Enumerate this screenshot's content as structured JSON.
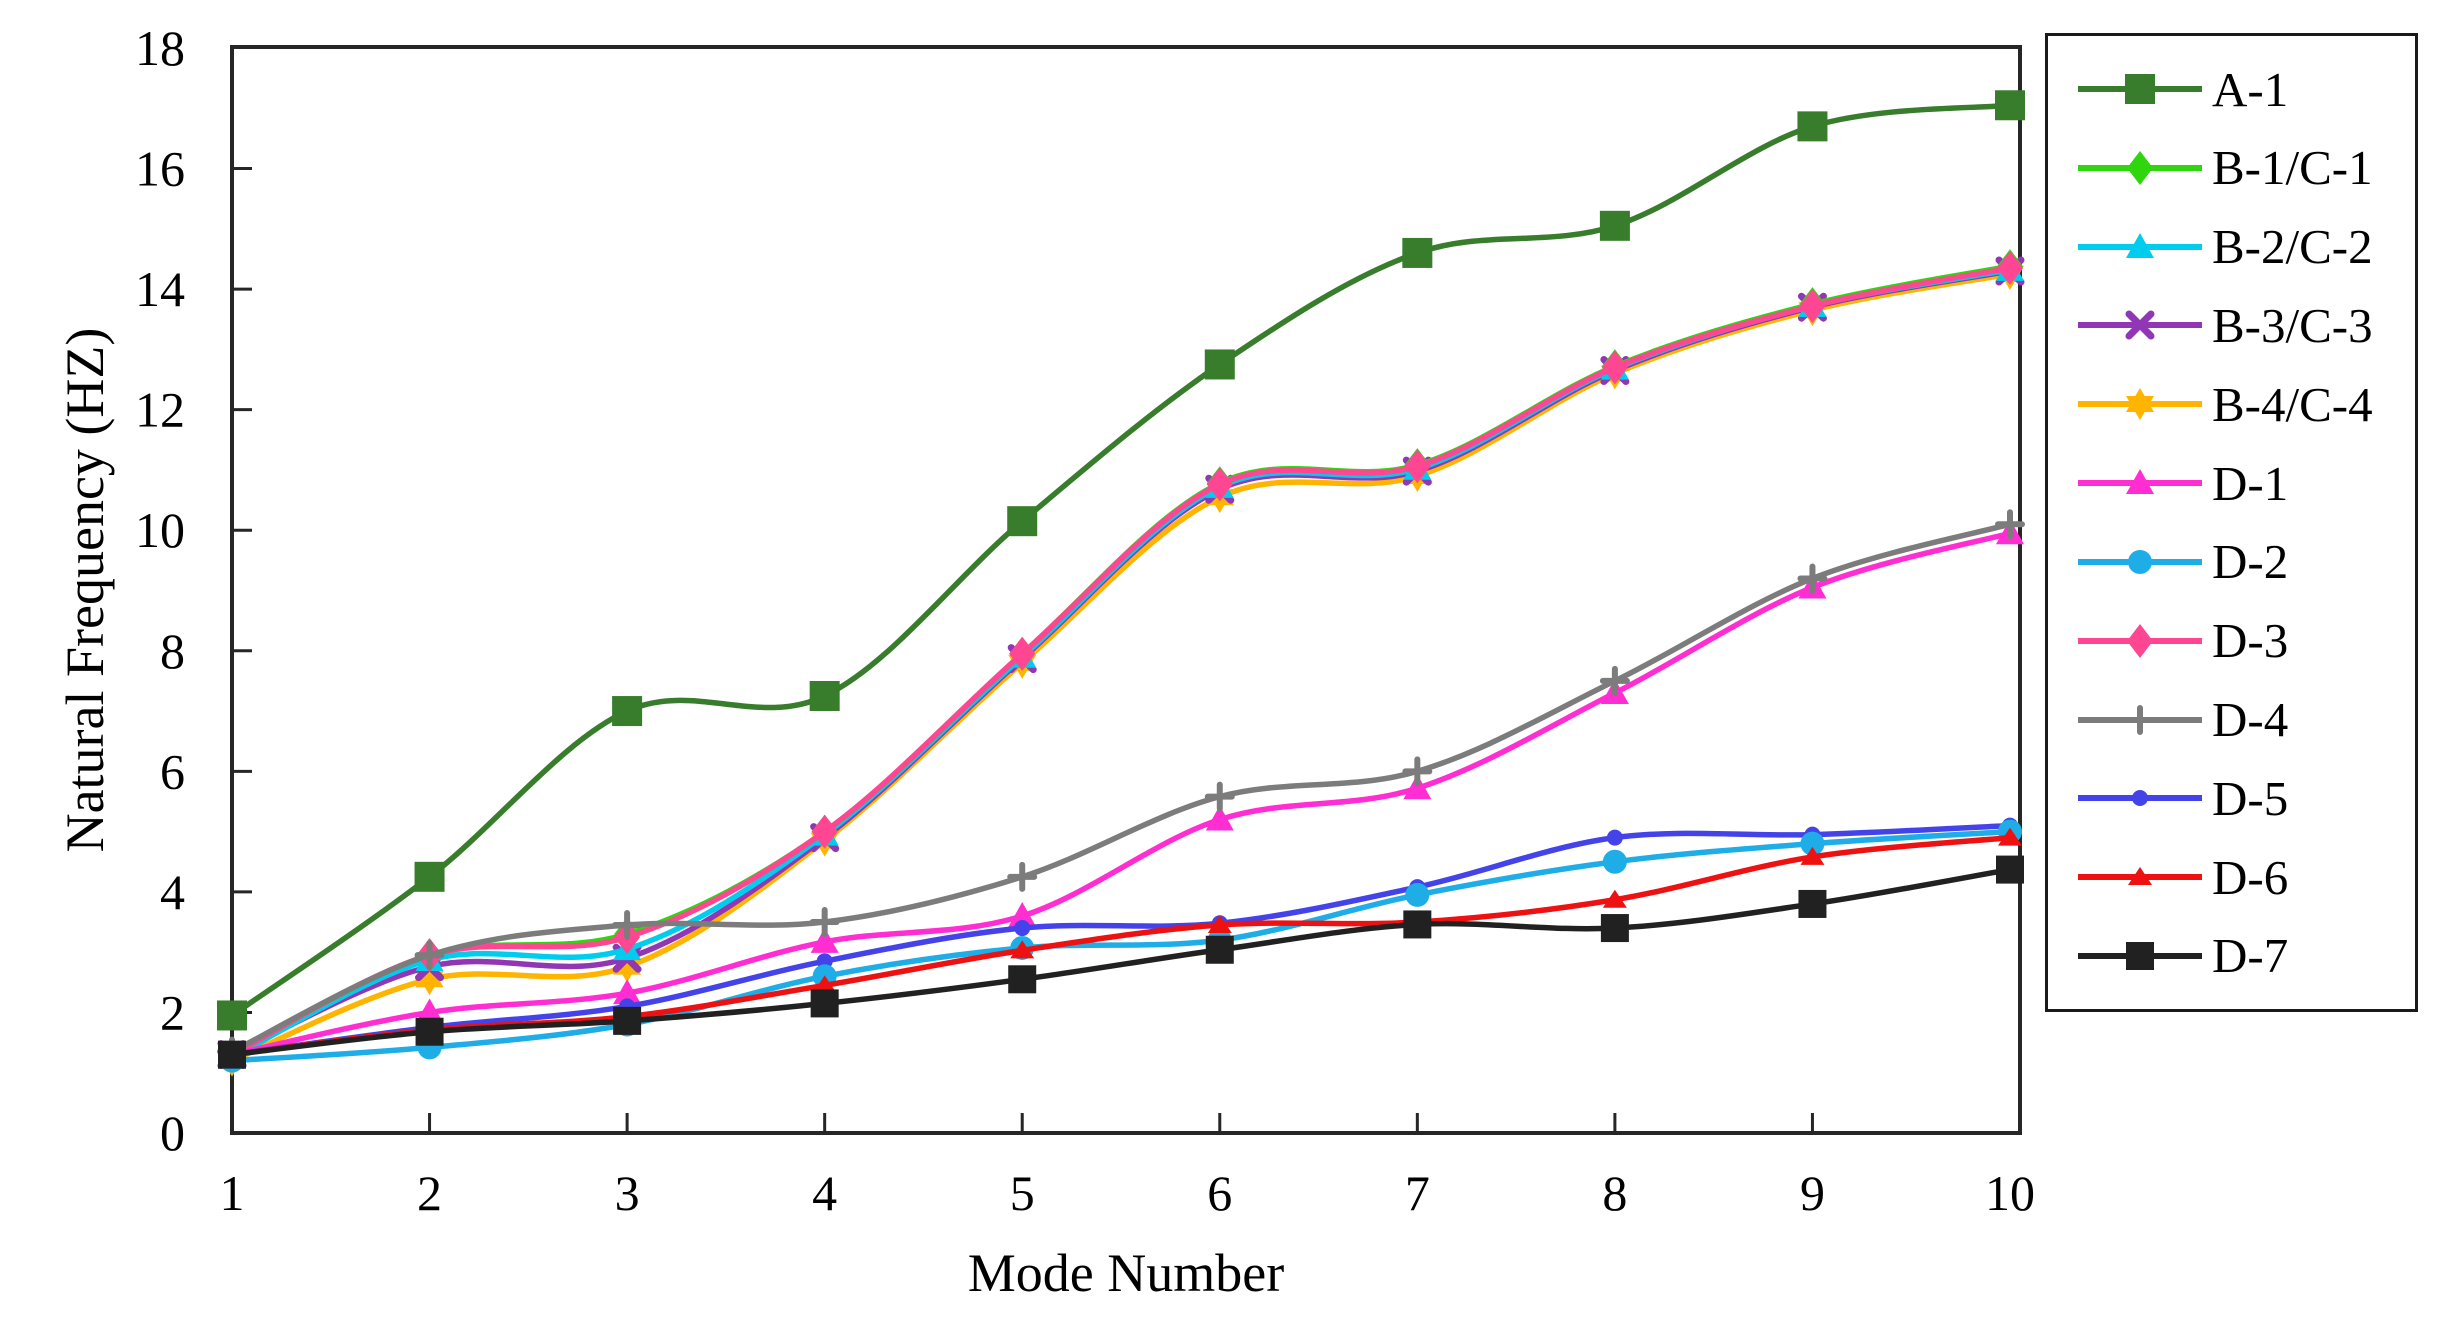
{
  "figure": {
    "xlabel": "Mode Number",
    "ylabel": "Natural Frequency (HZ)"
  },
  "chart_data": {
    "type": "line",
    "title": "",
    "xlabel": "Mode Number",
    "ylabel": "Natural Frequency (HZ)",
    "x": [
      1,
      2,
      3,
      4,
      5,
      6,
      7,
      8,
      9,
      10
    ],
    "x_ticks": [
      1,
      2,
      3,
      4,
      5,
      6,
      7,
      8,
      9,
      10
    ],
    "y_ticks": [
      0,
      2,
      4,
      6,
      8,
      10,
      12,
      14,
      16,
      18
    ],
    "xlim": [
      1,
      10
    ],
    "ylim": [
      0,
      18
    ],
    "grid": false,
    "legend_position": "right-outside",
    "series": [
      {
        "name": "A-1",
        "color": "#377d2b",
        "marker": "square",
        "values": [
          1.95,
          4.25,
          7.0,
          7.25,
          10.15,
          12.75,
          14.6,
          15.05,
          16.7,
          17.05
        ]
      },
      {
        "name": "B-1/C-1",
        "color": "#2fd60e",
        "marker": "diamond",
        "values": [
          1.3,
          2.95,
          3.3,
          5.0,
          7.95,
          10.78,
          11.08,
          12.72,
          13.75,
          14.38
        ]
      },
      {
        "name": "B-2/C-2",
        "color": "#00cdee",
        "marker": "triangle",
        "values": [
          1.25,
          2.87,
          3.05,
          4.95,
          7.9,
          10.72,
          11.02,
          12.68,
          13.72,
          14.32
        ]
      },
      {
        "name": "B-3/C-3",
        "color": "#9136b4",
        "marker": "x",
        "values": [
          1.3,
          2.76,
          2.9,
          4.9,
          7.87,
          10.68,
          10.98,
          12.65,
          13.7,
          14.3
        ]
      },
      {
        "name": "B-4/C-4",
        "color": "#ffb400",
        "marker": "star",
        "values": [
          1.2,
          2.55,
          2.76,
          4.85,
          7.8,
          10.55,
          10.9,
          12.6,
          13.65,
          14.25
        ]
      },
      {
        "name": "D-1",
        "color": "#ff2dd2",
        "marker": "triangle",
        "values": [
          1.3,
          2.0,
          2.32,
          3.17,
          3.6,
          5.2,
          5.72,
          7.3,
          9.05,
          9.95
        ]
      },
      {
        "name": "D-2",
        "color": "#1fade8",
        "marker": "circle",
        "values": [
          1.2,
          1.42,
          1.8,
          2.6,
          3.07,
          3.2,
          3.95,
          4.5,
          4.8,
          5.0
        ]
      },
      {
        "name": "D-3",
        "color": "#ff4693",
        "marker": "diamond",
        "values": [
          1.3,
          2.95,
          3.25,
          5.0,
          7.95,
          10.76,
          11.06,
          12.7,
          13.72,
          14.35
        ]
      },
      {
        "name": "D-4",
        "color": "#7c7c7c",
        "marker": "plus",
        "values": [
          1.35,
          2.95,
          3.45,
          3.5,
          4.25,
          5.58,
          6.0,
          7.5,
          9.2,
          10.1
        ]
      },
      {
        "name": "D-5",
        "color": "#4343e9",
        "marker": "dot",
        "values": [
          1.3,
          1.75,
          2.1,
          2.85,
          3.4,
          3.48,
          4.08,
          4.9,
          4.95,
          5.1
        ]
      },
      {
        "name": "D-6",
        "color": "#ee1111",
        "marker": "triangle-sm",
        "values": [
          1.3,
          1.71,
          1.93,
          2.45,
          3.03,
          3.45,
          3.5,
          3.87,
          4.58,
          4.9
        ]
      },
      {
        "name": "D-7",
        "color": "#212121",
        "marker": "square-sm",
        "values": [
          1.3,
          1.68,
          1.86,
          2.15,
          2.55,
          3.04,
          3.46,
          3.4,
          3.8,
          4.37
        ]
      }
    ]
  }
}
